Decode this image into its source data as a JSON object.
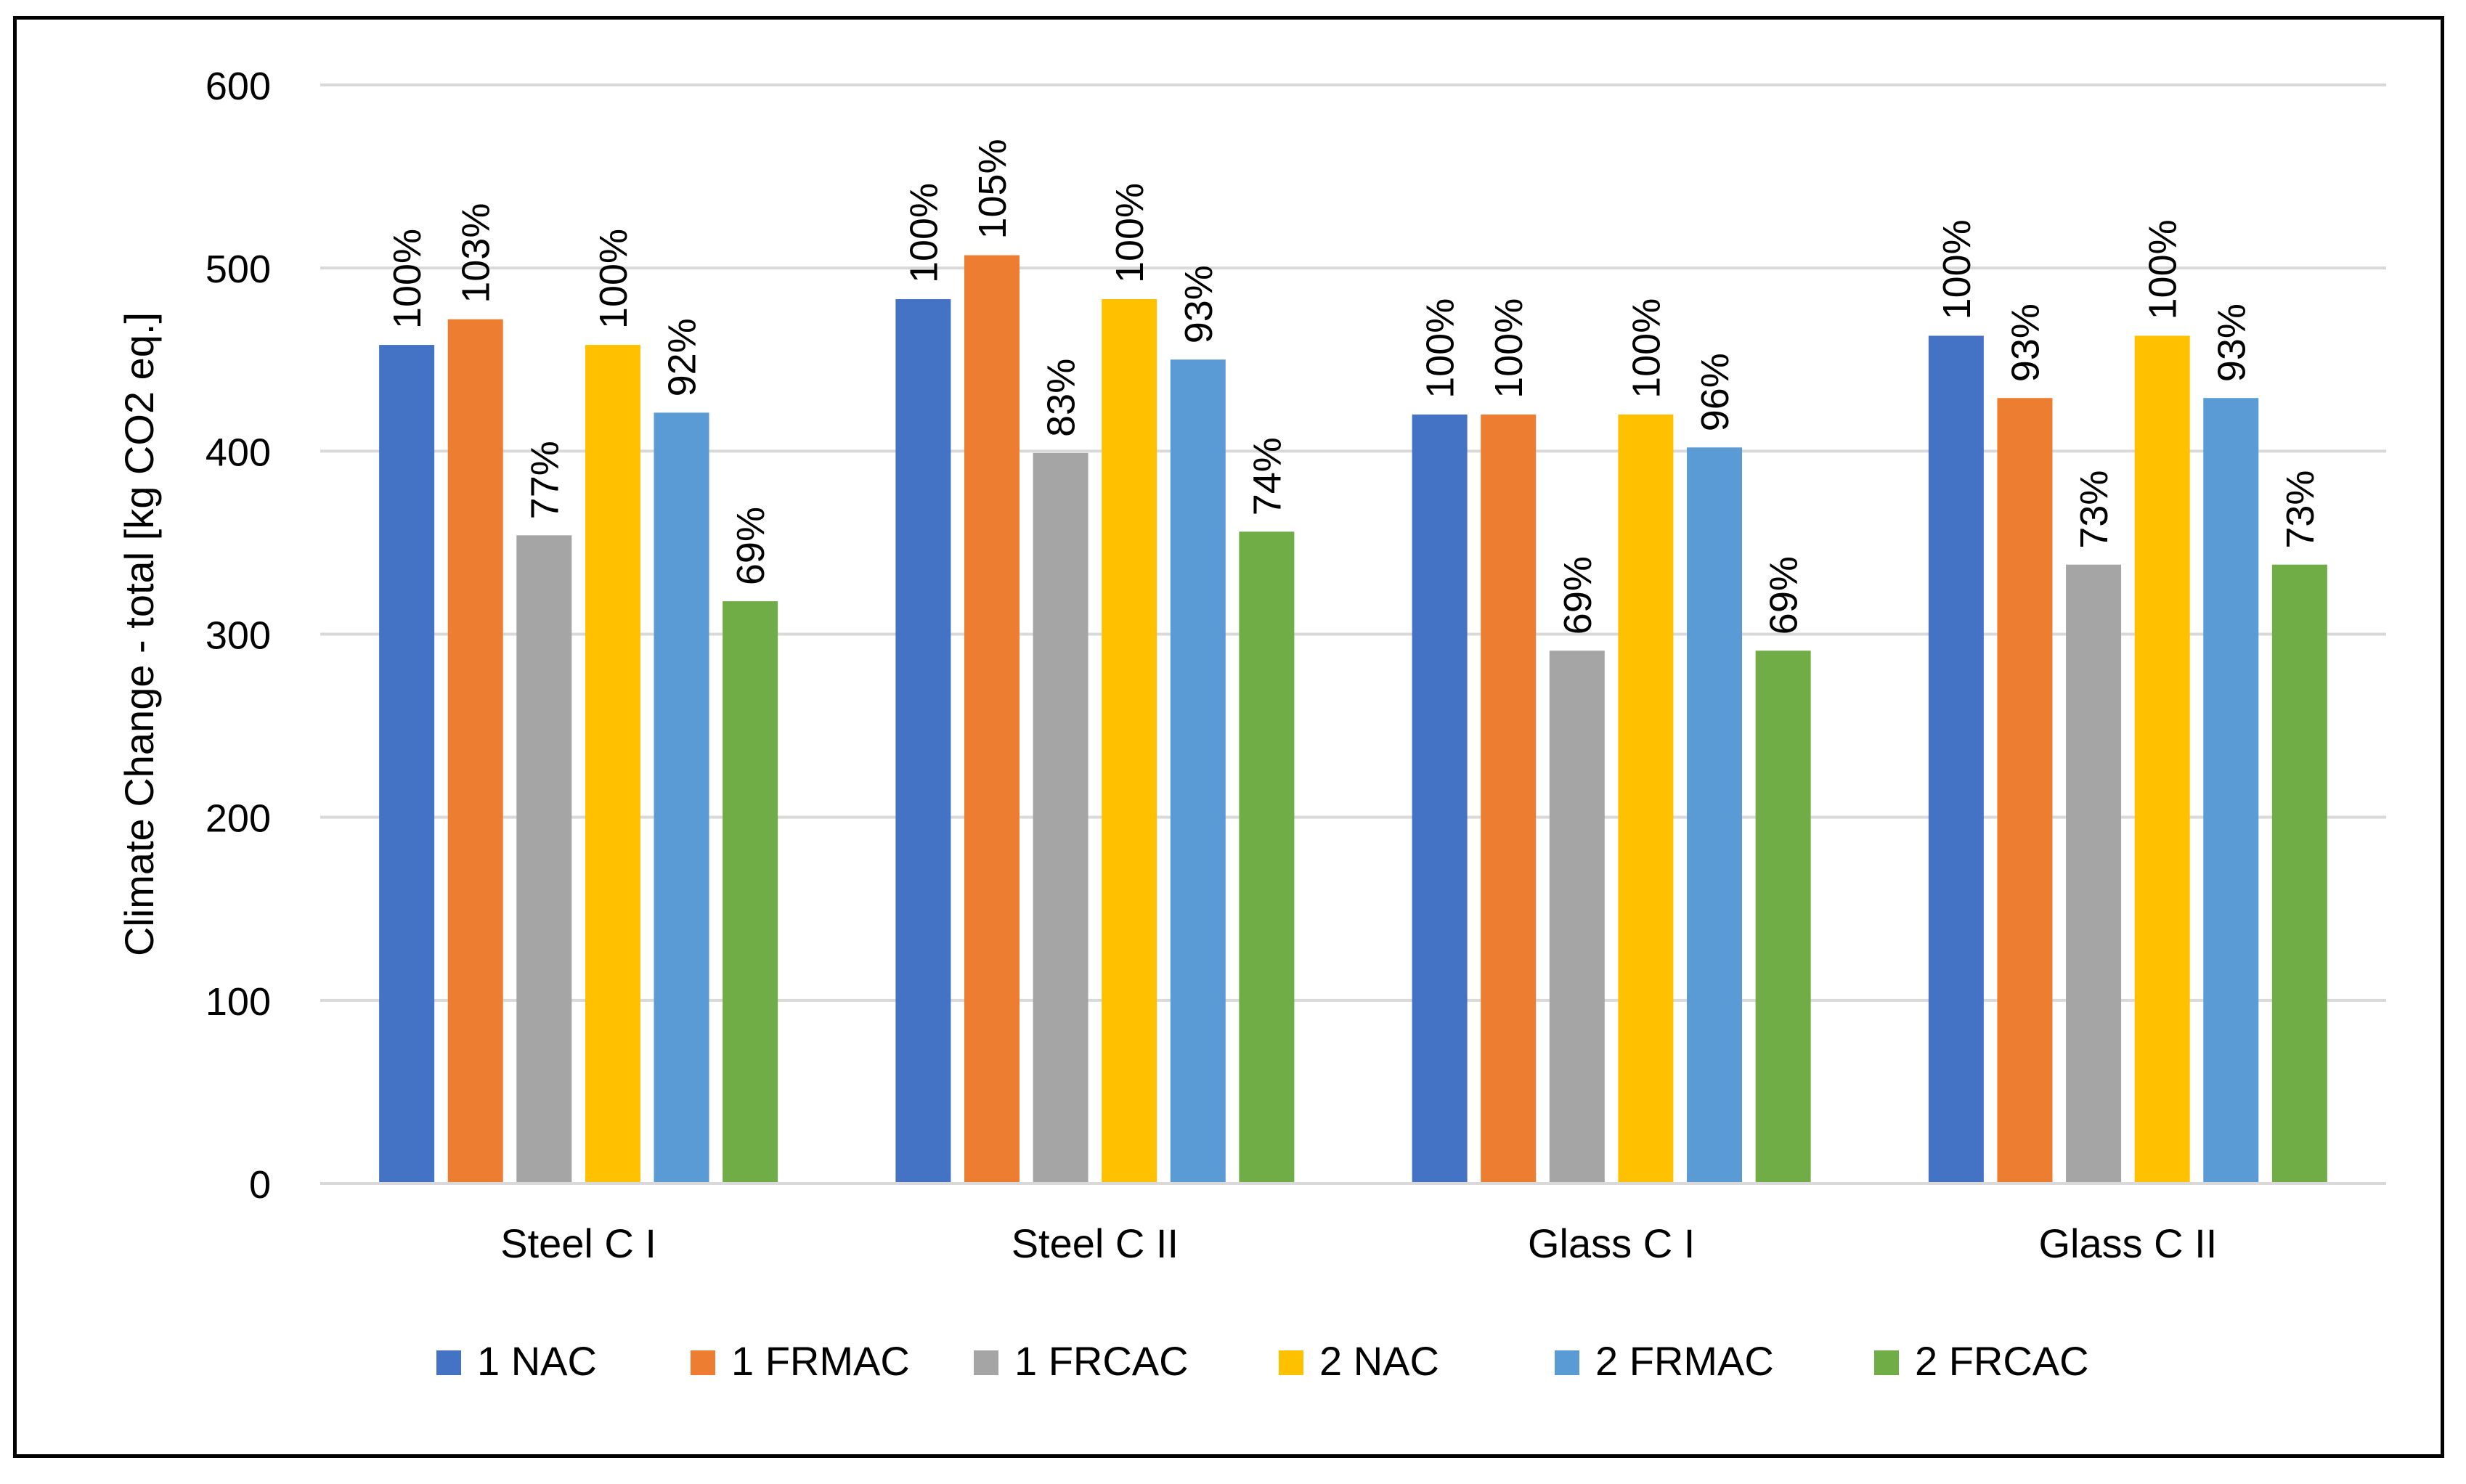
{
  "chart_data": {
    "type": "bar",
    "title": "",
    "xlabel": "",
    "ylabel": "Climate Change - total [kg CO2 eq.]",
    "ylim": [
      0,
      600
    ],
    "yticks": [
      0,
      100,
      200,
      300,
      400,
      500,
      600
    ],
    "grid": true,
    "legend_position": "bottom",
    "categories": [
      "Steel C I",
      "Steel C II",
      "Glass C I",
      "Glass C II"
    ],
    "series": [
      {
        "name": "1 NAC",
        "color": "#4472C4",
        "values": [
          458,
          483,
          420,
          463
        ],
        "labels": [
          "100%",
          "100%",
          "100%",
          "100%"
        ]
      },
      {
        "name": "1 FRMAC",
        "color": "#ED7D31",
        "values": [
          472,
          507,
          420,
          429
        ],
        "labels": [
          "103%",
          "105%",
          "100%",
          "93%"
        ]
      },
      {
        "name": "1 FRCAC",
        "color": "#A5A5A5",
        "values": [
          354,
          399,
          291,
          338
        ],
        "labels": [
          "77%",
          "83%",
          "69%",
          "73%"
        ]
      },
      {
        "name": "2 NAC",
        "color": "#FFC000",
        "values": [
          458,
          483,
          420,
          463
        ],
        "labels": [
          "100%",
          "100%",
          "100%",
          "100%"
        ]
      },
      {
        "name": "2 FRMAC",
        "color": "#5B9BD5",
        "values": [
          421,
          450,
          402,
          429
        ],
        "labels": [
          "92%",
          "93%",
          "96%",
          "93%"
        ]
      },
      {
        "name": "2 FRCAC",
        "color": "#70AD47",
        "values": [
          318,
          356,
          291,
          338
        ],
        "labels": [
          "69%",
          "74%",
          "69%",
          "73%"
        ]
      }
    ]
  }
}
